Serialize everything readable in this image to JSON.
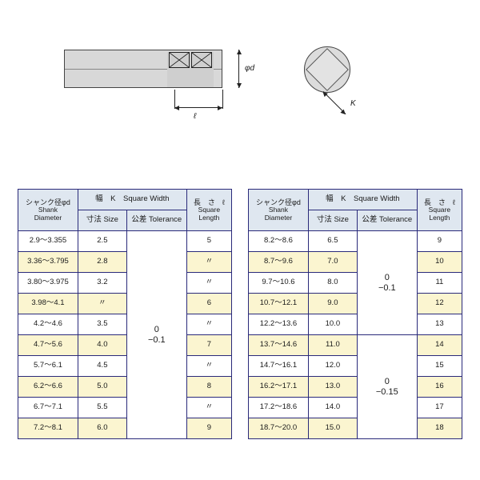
{
  "headers": {
    "shank_jp": "シャンク径φd",
    "shank_en1": "Shank",
    "shank_en2": "Diameter",
    "widthK": "幅　K　Square Width",
    "size_jp": "寸法",
    "size_en": "Size",
    "tol_jp": "公差",
    "tol_en": "Tolerance",
    "len_jp": "長　さ　ℓ",
    "len_en1": "Square",
    "len_en2": "Length"
  },
  "dim_labels": {
    "l": "ℓ",
    "phi_d": "φd",
    "K": "K"
  },
  "tol_left": "0\n−0.1",
  "tol_right_upper": "0\n−0.1",
  "tol_right_lower": "0\n−0.15",
  "ditto": "〃",
  "colors": {
    "header_bg": "#dfe7f0",
    "alt_bg": "#fbf5d0",
    "border": "#2a2a7a",
    "diagram_fill": "#d8d8d8"
  },
  "left_rows": [
    {
      "d": "2.9～3.355",
      "size": "2.5",
      "len": "5",
      "alt": false
    },
    {
      "d": "3.36～3.795",
      "size": "2.8",
      "len": "〃",
      "alt": true
    },
    {
      "d": "3.80～3.975",
      "size": "3.2",
      "len": "〃",
      "alt": false
    },
    {
      "d": "3.98～4.1",
      "size": "〃",
      "len": "6",
      "alt": true
    },
    {
      "d": "4.2～4.6",
      "size": "3.5",
      "len": "〃",
      "alt": false
    },
    {
      "d": "4.7～5.6",
      "size": "4.0",
      "len": "7",
      "alt": true
    },
    {
      "d": "5.7～6.1",
      "size": "4.5",
      "len": "〃",
      "alt": false
    },
    {
      "d": "6.2～6.6",
      "size": "5.0",
      "len": "8",
      "alt": true
    },
    {
      "d": "6.7～7.1",
      "size": "5.5",
      "len": "〃",
      "alt": false
    },
    {
      "d": "7.2～8.1",
      "size": "6.0",
      "len": "9",
      "alt": true
    }
  ],
  "right_rows": [
    {
      "d": "8.2～8.6",
      "size": "6.5",
      "len": "9",
      "alt": false,
      "tol_block": "upper",
      "tol_span": 5
    },
    {
      "d": "8.7～9.6",
      "size": "7.0",
      "len": "10",
      "alt": true
    },
    {
      "d": "9.7～10.6",
      "size": "8.0",
      "len": "11",
      "alt": false
    },
    {
      "d": "10.7～12.1",
      "size": "9.0",
      "len": "12",
      "alt": true
    },
    {
      "d": "12.2～13.6",
      "size": "10.0",
      "len": "13",
      "alt": false
    },
    {
      "d": "13.7～14.6",
      "size": "11.0",
      "len": "14",
      "alt": true,
      "tol_block": "lower",
      "tol_span": 6
    },
    {
      "d": "14.7～16.1",
      "size": "12.0",
      "len": "15",
      "alt": false
    },
    {
      "d": "16.2～17.1",
      "size": "13.0",
      "len": "16",
      "alt": true
    },
    {
      "d": "17.2～18.6",
      "size": "14.0",
      "len": "17",
      "alt": false
    },
    {
      "d": "18.7～20.0",
      "size": "15.0",
      "len": "18",
      "alt": true
    }
  ]
}
